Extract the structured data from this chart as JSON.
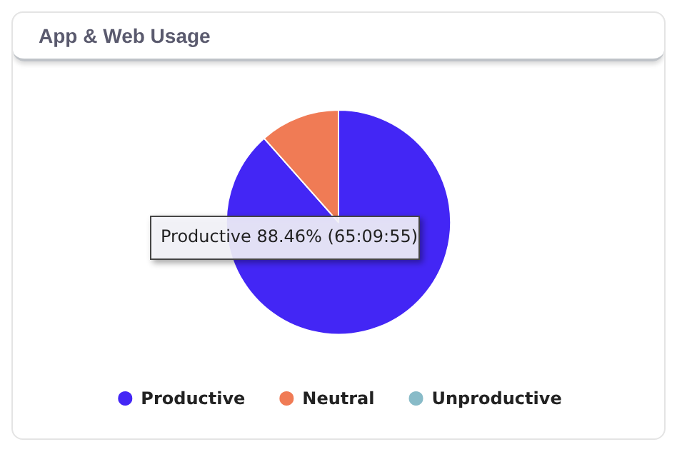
{
  "chart_data": {
    "type": "pie",
    "title": "App & Web Usage",
    "categories": [
      "Productive",
      "Neutral",
      "Unproductive"
    ],
    "values": [
      88.46,
      11.54,
      0
    ],
    "colors": [
      "#4326f5",
      "#f07b55",
      "#88bbc8"
    ],
    "legend": "bottom",
    "annotations": [
      "Productive 88.46% (65:09:55)"
    ]
  }
}
